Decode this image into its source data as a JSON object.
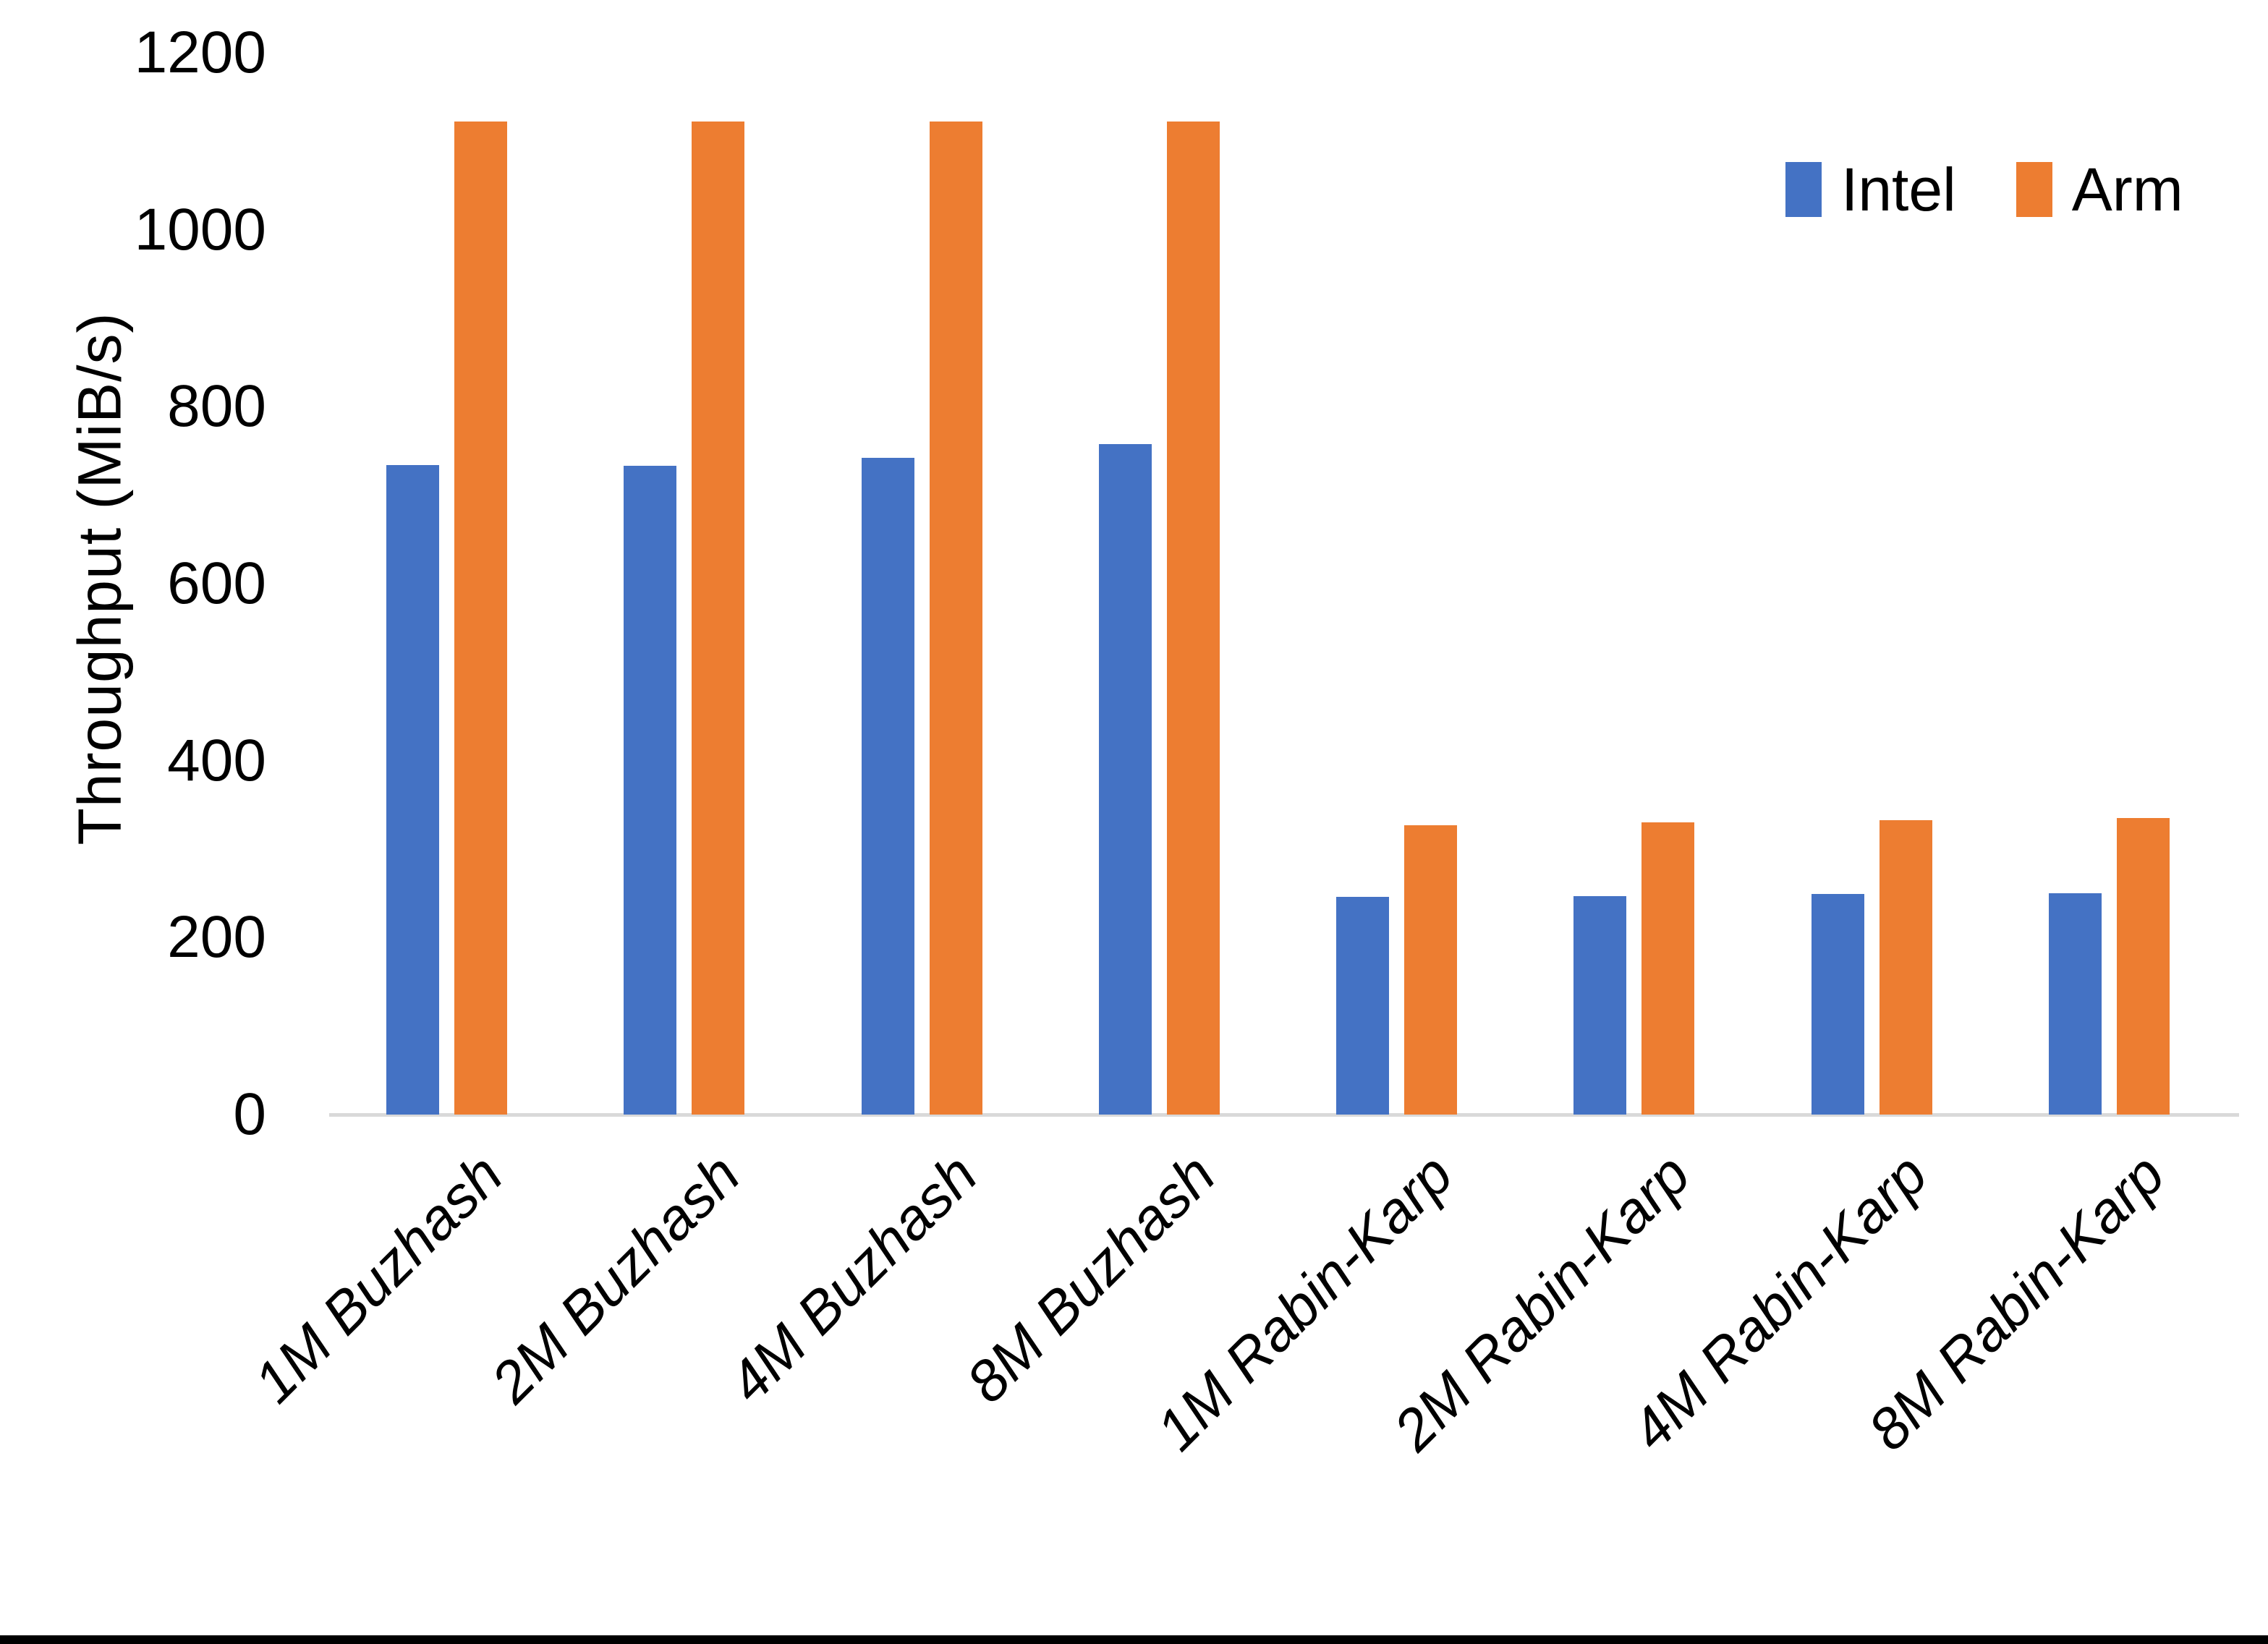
{
  "chart_data": {
    "type": "bar",
    "title": "",
    "xlabel": "",
    "ylabel": "Throughput (MiB/s)",
    "ylim": [
      0,
      1200
    ],
    "yticks": [
      0,
      200,
      400,
      600,
      800,
      1000,
      1200
    ],
    "grid": false,
    "legend_position": "top-right",
    "categories": [
      "1M Buzhash",
      "2M Buzhash",
      "4M Buzhash",
      "8M Buzhash",
      "1M Rabin-Karp",
      "2M Rabin-Karp",
      "4M Rabin-Karp",
      "8M Rabin-Karp"
    ],
    "series": [
      {
        "name": "Intel",
        "color": "#4472C4",
        "values": [
          734,
          733,
          742,
          758,
          246,
          247,
          249,
          250
        ]
      },
      {
        "name": "Arm",
        "color": "#ED7D31",
        "values": [
          1122,
          1122,
          1122,
          1122,
          327,
          330,
          333,
          335
        ]
      }
    ]
  },
  "colors": {
    "axis_line": "#D9D9D9",
    "text": "#000000",
    "background": "#FFFFFF",
    "bottom_border": "#000000"
  }
}
